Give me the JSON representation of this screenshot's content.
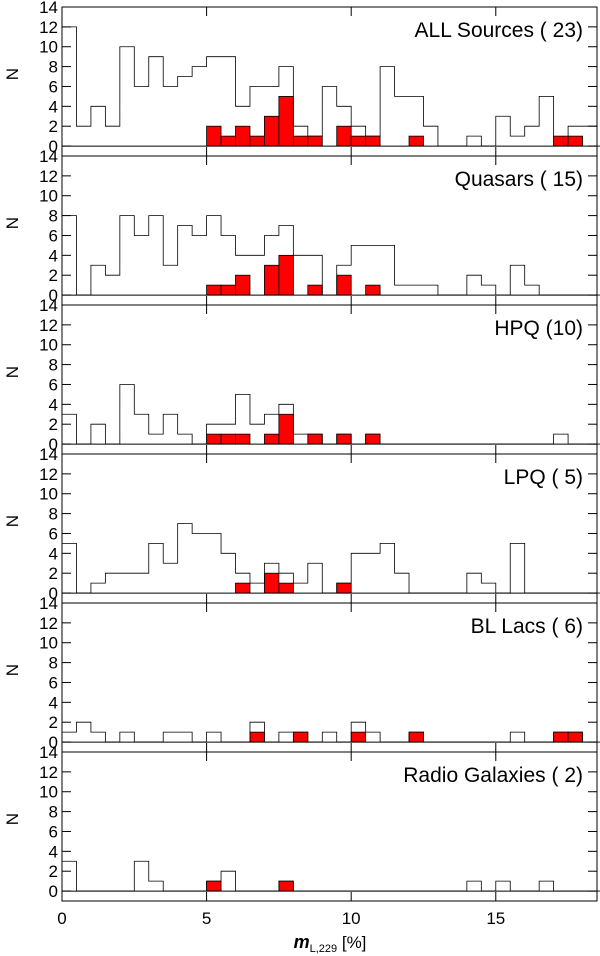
{
  "chart_data": {
    "type": "bar",
    "description_style": "stacked-panel step histograms; outline = all values, filled red = subset",
    "x_axis": {
      "range": [
        0,
        18.5
      ],
      "ticks": [
        0,
        5,
        10,
        15
      ],
      "tick_labels": [
        "0",
        "5",
        "10",
        "15"
      ],
      "label_main": "m",
      "label_sub": "L,229",
      "label_rest": " [%]"
    },
    "y_axis": {
      "label": "N",
      "range": [
        -1,
        14
      ],
      "ticks": [
        0,
        2,
        4,
        6,
        8,
        10,
        12,
        14
      ],
      "tick_labels": [
        "0",
        "2",
        "4",
        "6",
        "8",
        "10",
        "12",
        "14"
      ]
    },
    "bin_width": 0.5,
    "fill_color": "#ff0000",
    "outline_color": "#000000",
    "panels": [
      {
        "title": "ALL Sources ( 23)",
        "outline": [
          12,
          2,
          4,
          2,
          10,
          6,
          9,
          6,
          7,
          8,
          9,
          9,
          4,
          6,
          6,
          8,
          2,
          1,
          6,
          4,
          2,
          1,
          8,
          5,
          5,
          2,
          0,
          0,
          1,
          0,
          3,
          1,
          2,
          5,
          0,
          2,
          2,
          0
        ],
        "filled": [
          0,
          0,
          0,
          0,
          0,
          0,
          0,
          0,
          0,
          0,
          2,
          1,
          2,
          1,
          3,
          5,
          1,
          1,
          0,
          2,
          1,
          1,
          0,
          0,
          1,
          0,
          0,
          0,
          0,
          0,
          0,
          0,
          0,
          0,
          1,
          1,
          0,
          0
        ]
      },
      {
        "title": "Quasars ( 15)",
        "outline": [
          8,
          0,
          3,
          2,
          8,
          6,
          8,
          3,
          7,
          6,
          8,
          6,
          4,
          4,
          6,
          7,
          4,
          4,
          0,
          3,
          5,
          5,
          5,
          1,
          1,
          1,
          0,
          0,
          2,
          1,
          0,
          3,
          1,
          0,
          0,
          0,
          0,
          0
        ],
        "filled": [
          0,
          0,
          0,
          0,
          0,
          0,
          0,
          0,
          0,
          0,
          1,
          1,
          2,
          0,
          3,
          4,
          0,
          1,
          0,
          2,
          0,
          1,
          0,
          0,
          0,
          0,
          0,
          0,
          0,
          0,
          0,
          0,
          0,
          0,
          0,
          0,
          0,
          0
        ]
      },
      {
        "title": "HPQ (10)",
        "outline": [
          3,
          0,
          2,
          0,
          6,
          3,
          1,
          3,
          1,
          0,
          2,
          2,
          5,
          2,
          3,
          4,
          1,
          1,
          0,
          1,
          0,
          1,
          0,
          0,
          0,
          0,
          0,
          0,
          0,
          0,
          0,
          0,
          0,
          0,
          1,
          0,
          0,
          0
        ],
        "filled": [
          0,
          0,
          0,
          0,
          0,
          0,
          0,
          0,
          0,
          0,
          1,
          1,
          1,
          0,
          1,
          3,
          0,
          1,
          0,
          1,
          0,
          1,
          0,
          0,
          0,
          0,
          0,
          0,
          0,
          0,
          0,
          0,
          0,
          0,
          0,
          0,
          0,
          0
        ]
      },
      {
        "title": "LPQ ( 5)",
        "outline": [
          5,
          0,
          1,
          2,
          2,
          2,
          5,
          3,
          7,
          6,
          6,
          4,
          2,
          1,
          3,
          2,
          1,
          3,
          0,
          1,
          4,
          4,
          5,
          2,
          0,
          0,
          0,
          0,
          2,
          1,
          0,
          5,
          0,
          0,
          0,
          0,
          0,
          0
        ],
        "filled": [
          0,
          0,
          0,
          0,
          0,
          0,
          0,
          0,
          0,
          0,
          0,
          0,
          1,
          0,
          2,
          1,
          0,
          0,
          0,
          1,
          0,
          0,
          0,
          0,
          0,
          0,
          0,
          0,
          0,
          0,
          0,
          0,
          0,
          0,
          0,
          0,
          0,
          0
        ]
      },
      {
        "title": "BL Lacs ( 6)",
        "outline": [
          1,
          2,
          1,
          0,
          1,
          0,
          0,
          1,
          1,
          0,
          1,
          0,
          0,
          2,
          0,
          1,
          1,
          0,
          1,
          0,
          2,
          1,
          0,
          0,
          1,
          0,
          0,
          0,
          0,
          0,
          0,
          1,
          0,
          0,
          1,
          1,
          0,
          0
        ],
        "filled": [
          0,
          0,
          0,
          0,
          0,
          0,
          0,
          0,
          0,
          0,
          0,
          0,
          0,
          1,
          0,
          0,
          1,
          0,
          0,
          0,
          1,
          0,
          0,
          0,
          1,
          0,
          0,
          0,
          0,
          0,
          0,
          0,
          0,
          0,
          1,
          1,
          0,
          0
        ]
      },
      {
        "title": "Radio Galaxies ( 2)",
        "outline": [
          3,
          0,
          0,
          0,
          0,
          3,
          1,
          0,
          0,
          0,
          1,
          2,
          0,
          0,
          0,
          1,
          0,
          0,
          0,
          0,
          0,
          0,
          0,
          0,
          0,
          0,
          0,
          0,
          1,
          0,
          1,
          0,
          0,
          1,
          0,
          0,
          0,
          0
        ],
        "filled": [
          0,
          0,
          0,
          0,
          0,
          0,
          0,
          0,
          0,
          0,
          1,
          0,
          0,
          0,
          0,
          1,
          0,
          0,
          0,
          0,
          0,
          0,
          0,
          0,
          0,
          0,
          0,
          0,
          0,
          0,
          0,
          0,
          0,
          0,
          0,
          0,
          0,
          0
        ]
      }
    ]
  }
}
